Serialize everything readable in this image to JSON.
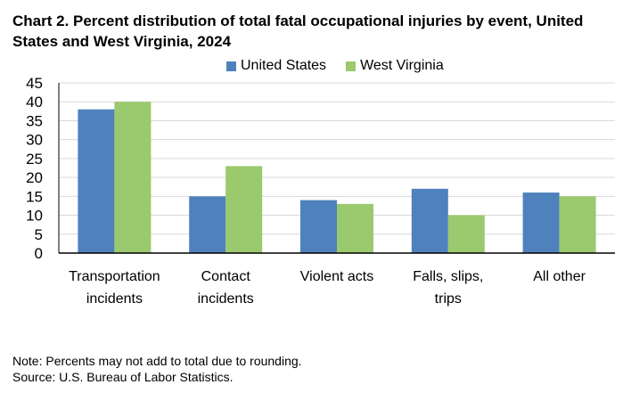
{
  "chart_data": {
    "type": "bar",
    "title": "Chart 2. Percent distribution of total fatal occupational injuries by event, United States and West Virginia, 2024",
    "categories": [
      [
        "Transportation",
        "incidents"
      ],
      [
        "Contact",
        "incidents"
      ],
      [
        "Violent acts"
      ],
      [
        "Falls, slips,",
        "trips"
      ],
      [
        "All other"
      ]
    ],
    "series": [
      {
        "name": "United States",
        "color": "#4f81bd",
        "values": [
          38,
          15,
          14,
          17,
          16
        ]
      },
      {
        "name": "West Virginia",
        "color": "#9bc96e",
        "values": [
          40,
          23,
          13,
          10,
          15
        ]
      }
    ],
    "ylim": [
      0,
      45
    ],
    "yticks": [
      0,
      5,
      10,
      15,
      20,
      25,
      30,
      35,
      40,
      45
    ],
    "grid": true,
    "legend": "top"
  },
  "notes": {
    "note": "Note: Percents may not add to total due to rounding.",
    "source": "Source: U.S. Bureau of Labor Statistics."
  }
}
